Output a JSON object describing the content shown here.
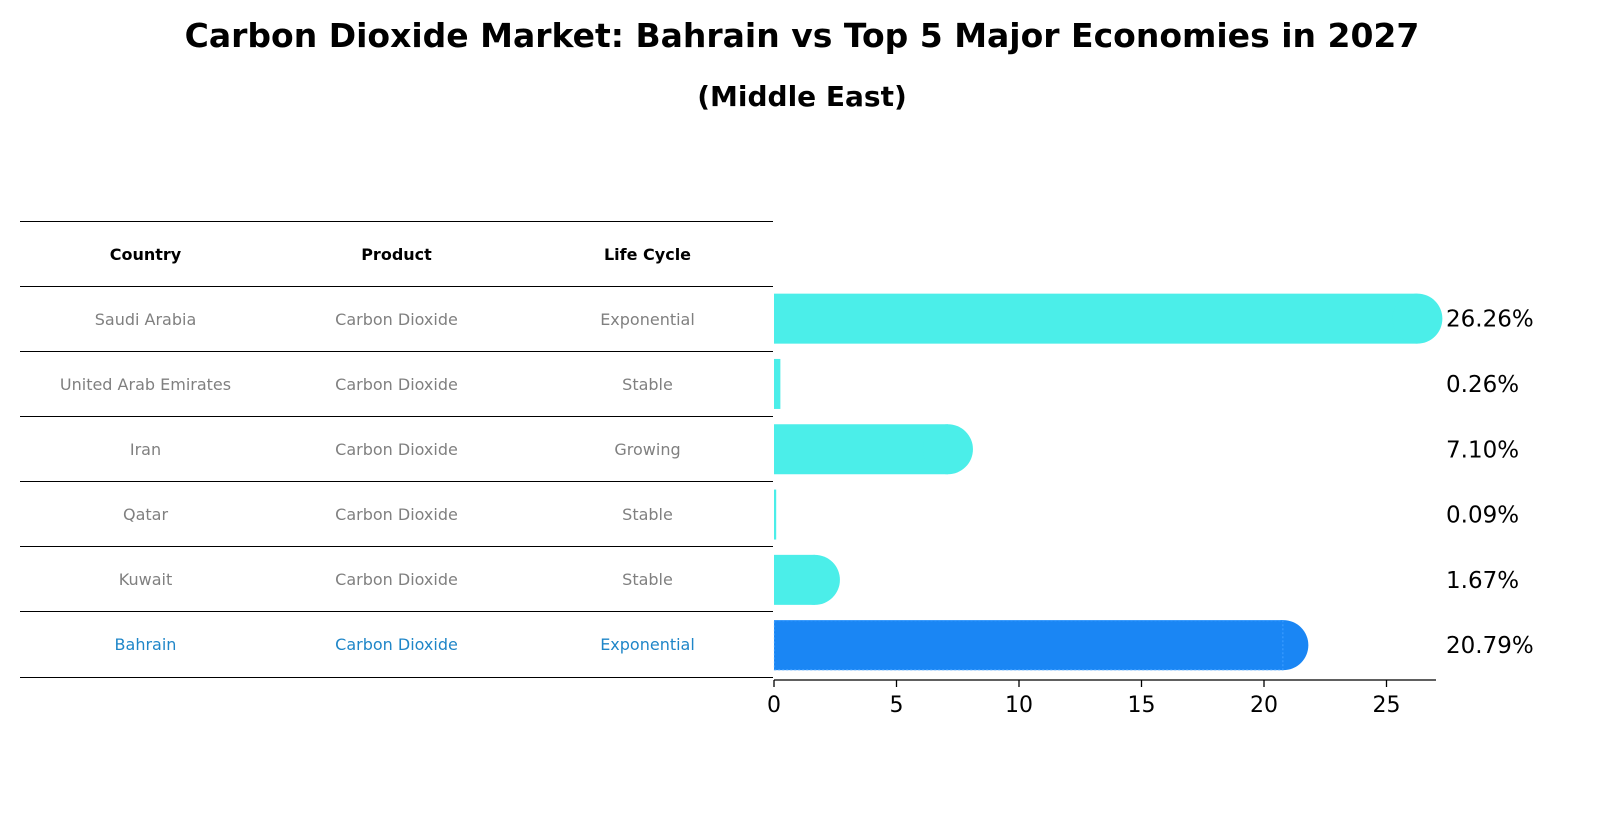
{
  "title": "Carbon Dioxide Market: Bahrain vs Top 5 Major Economies in 2027",
  "subtitle": "(Middle East)",
  "table": {
    "headers": [
      "Country",
      "Product",
      "Life Cycle"
    ],
    "rows": [
      [
        "Saudi Arabia",
        "Carbon Dioxide",
        "Exponential"
      ],
      [
        "United Arab Emirates",
        "Carbon Dioxide",
        "Stable"
      ],
      [
        "Iran",
        "Carbon Dioxide",
        "Growing"
      ],
      [
        "Qatar",
        "Carbon Dioxide",
        "Stable"
      ],
      [
        "Kuwait",
        "Carbon Dioxide",
        "Stable"
      ],
      [
        "Bahrain",
        "Carbon Dioxide",
        "Exponential"
      ]
    ]
  },
  "colors": {
    "bar": "#4beee9",
    "highlight_bar": "#1a86f4",
    "highlight_text": "#1f86c8",
    "row_text": "#808080"
  },
  "chart_data": {
    "type": "bar",
    "orientation": "horizontal",
    "title": "Carbon Dioxide Market: Bahrain vs Top 5 Major Economies in 2027",
    "subtitle": "(Middle East)",
    "categories": [
      "Saudi Arabia",
      "United Arab Emirates",
      "Iran",
      "Qatar",
      "Kuwait",
      "Bahrain"
    ],
    "values": [
      26.26,
      0.26,
      7.1,
      0.09,
      1.67,
      20.79
    ],
    "value_labels": [
      "26.26%",
      "0.26%",
      "7.10%",
      "0.09%",
      "1.67%",
      "20.79%"
    ],
    "highlight": "Bahrain",
    "xlim": [
      0,
      27.5
    ],
    "xticks": [
      0,
      5,
      10,
      15,
      20,
      25
    ],
    "xlabel": "",
    "ylabel": "",
    "grid": false
  }
}
